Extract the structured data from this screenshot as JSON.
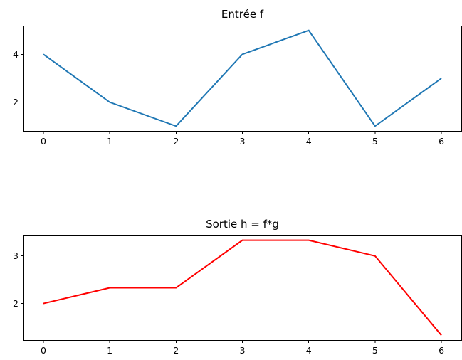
{
  "chart_data": [
    {
      "type": "line",
      "title": "Entrée f",
      "x": [
        0,
        1,
        2,
        3,
        4,
        5,
        6
      ],
      "series": [
        {
          "values": [
            4,
            2,
            1,
            4,
            5,
            1,
            3
          ],
          "color": "#1f77b4"
        }
      ],
      "xticks": [
        "0",
        "1",
        "2",
        "3",
        "4",
        "5",
        "6"
      ],
      "yticks": [
        "2",
        "4"
      ],
      "xlim": [
        -0.3,
        6.3
      ],
      "ylim": [
        0.8,
        5.2
      ],
      "grid": false
    },
    {
      "type": "line",
      "title": "Sortie h = f*g",
      "x": [
        0,
        1,
        2,
        3,
        4,
        5,
        6
      ],
      "series": [
        {
          "values": [
            2,
            2.33,
            2.33,
            3.33,
            3.33,
            3,
            1.33
          ],
          "color": "#ff0000"
        }
      ],
      "xticks": [
        "0",
        "1",
        "2",
        "3",
        "4",
        "5",
        "6"
      ],
      "yticks": [
        "2",
        "3"
      ],
      "xlim": [
        -0.3,
        6.3
      ],
      "ylim": [
        1.23,
        3.43
      ],
      "grid": false
    }
  ]
}
